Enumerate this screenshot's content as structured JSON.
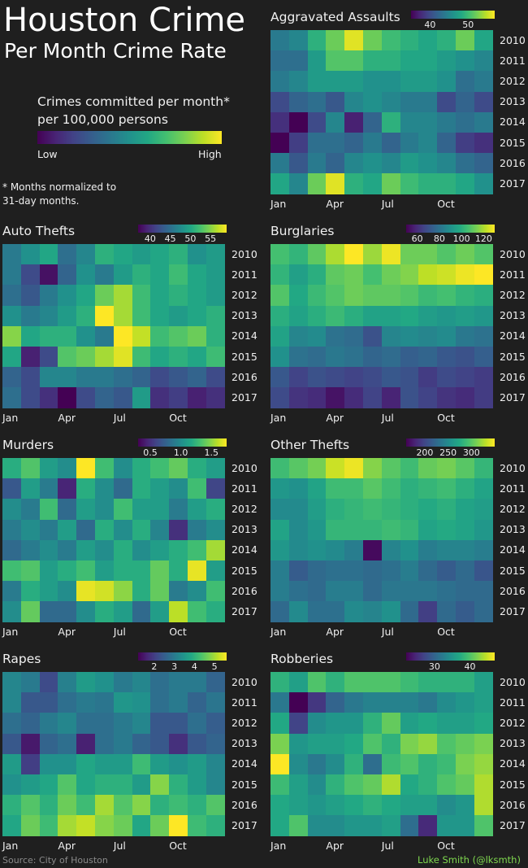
{
  "header": {
    "title": "Houston Crime",
    "subtitle": "Per Month Crime Rate",
    "legend_text": "Crimes committed per month* per 100,000 persons",
    "legend_low": "Low",
    "legend_high": "High",
    "footnote": "* Months normalized to 31-day months."
  },
  "footer": {
    "source": "Source: City of Houston",
    "credit": "Luke Smith (@lksmth)"
  },
  "colorscale": [
    "#440154",
    "#482475",
    "#414487",
    "#355f8d",
    "#2a788e",
    "#21918c",
    "#22a884",
    "#44bf70",
    "#7ad151",
    "#bddf26",
    "#fde725"
  ],
  "chart_data": [
    {
      "type": "heatmap",
      "title": "Aggravated Assaults",
      "xtick_labels": [
        "Jan",
        "Apr",
        "Jul",
        "Oct"
      ],
      "xtick_months": [
        1,
        4,
        7,
        10
      ],
      "y": [
        "2010",
        "2011",
        "2012",
        "2013",
        "2014",
        "2015",
        "2016",
        "2017"
      ],
      "colorbar_ticks": [
        40,
        50
      ],
      "vmin": 35,
      "vmax": 57,
      "values": [
        [
          44,
          45,
          49,
          52,
          56,
          52,
          50,
          49,
          48,
          49,
          52,
          48
        ],
        [
          43,
          43,
          47,
          51,
          51,
          49,
          49,
          48,
          48,
          47,
          46,
          45
        ],
        [
          44,
          45,
          47,
          47,
          47,
          46,
          46,
          47,
          47,
          46,
          43,
          44
        ],
        [
          40,
          42,
          43,
          41,
          45,
          46,
          45,
          44,
          44,
          40,
          42,
          40
        ],
        [
          38,
          35,
          40,
          45,
          37,
          42,
          49,
          45,
          45,
          44,
          43,
          44
        ],
        [
          35,
          39,
          43,
          43,
          42,
          44,
          42,
          44,
          45,
          42,
          39,
          38
        ],
        [
          44,
          41,
          44,
          42,
          45,
          46,
          45,
          47,
          46,
          45,
          43,
          42
        ],
        [
          48,
          45,
          52,
          56,
          49,
          48,
          52,
          50,
          49,
          49,
          48,
          46
        ]
      ]
    },
    {
      "type": "heatmap",
      "title": "Auto Thefts",
      "xtick_labels": [
        "Jan",
        "Apr",
        "Jul",
        "Oct"
      ],
      "xtick_months": [
        1,
        4,
        7,
        10
      ],
      "y": [
        "2010",
        "2011",
        "2012",
        "2013",
        "2014",
        "2015",
        "2016",
        "2017"
      ],
      "colorbar_ticks": [
        40,
        45,
        50,
        55
      ],
      "vmin": 37,
      "vmax": 59,
      "values": [
        [
          46,
          48,
          50,
          45,
          47,
          51,
          50,
          49,
          50,
          51,
          48,
          49
        ],
        [
          46,
          42,
          38,
          44,
          48,
          46,
          49,
          51,
          50,
          52,
          50,
          49
        ],
        [
          45,
          43,
          46,
          48,
          50,
          54,
          56,
          52,
          50,
          51,
          50,
          49
        ],
        [
          48,
          46,
          47,
          49,
          51,
          59,
          56,
          52,
          50,
          49,
          50,
          51
        ],
        [
          55,
          50,
          51,
          51,
          48,
          46,
          59,
          57,
          52,
          53,
          54,
          51
        ],
        [
          50,
          39,
          42,
          53,
          54,
          56,
          58,
          52,
          50,
          51,
          50,
          52
        ],
        [
          44,
          42,
          47,
          47,
          46,
          46,
          45,
          44,
          42,
          43,
          44,
          42
        ],
        [
          45,
          42,
          40,
          37,
          42,
          44,
          43,
          49,
          40,
          41,
          39,
          40
        ]
      ]
    },
    {
      "type": "heatmap",
      "title": "Burglaries",
      "xtick_labels": [
        "Jan",
        "Apr",
        "Jul",
        "Oct"
      ],
      "xtick_months": [
        1,
        4,
        7,
        10
      ],
      "y": [
        "2010",
        "2011",
        "2012",
        "2013",
        "2014",
        "2015",
        "2016",
        "2017"
      ],
      "colorbar_ticks": [
        60,
        80,
        100,
        120
      ],
      "vmin": 50,
      "vmax": 130,
      "values": [
        [
          106,
          102,
          110,
          120,
          130,
          118,
          128,
          112,
          112,
          108,
          112,
          108
        ],
        [
          102,
          95,
          100,
          110,
          112,
          106,
          112,
          115,
          122,
          124,
          128,
          130
        ],
        [
          108,
          98,
          104,
          108,
          112,
          110,
          110,
          108,
          104,
          106,
          102,
          100
        ],
        [
          100,
          96,
          100,
          104,
          100,
          96,
          96,
          98,
          94,
          92,
          94,
          92
        ],
        [
          96,
          86,
          88,
          80,
          78,
          70,
          86,
          88,
          86,
          88,
          82,
          80
        ],
        [
          90,
          80,
          78,
          82,
          80,
          76,
          78,
          74,
          76,
          72,
          70,
          74
        ],
        [
          72,
          66,
          70,
          68,
          66,
          68,
          72,
          70,
          64,
          68,
          66,
          64
        ],
        [
          68,
          62,
          60,
          54,
          60,
          66,
          58,
          70,
          66,
          62,
          60,
          64
        ]
      ]
    },
    {
      "type": "heatmap",
      "title": "Murders",
      "xtick_labels": [
        "Jan",
        "Apr",
        "Jul",
        "Oct"
      ],
      "xtick_months": [
        1,
        4,
        7,
        10
      ],
      "y": [
        "2010",
        "2011",
        "2012",
        "2013",
        "2014",
        "2015",
        "2016",
        "2017"
      ],
      "colorbar_ticks": [
        0.5,
        1.0,
        1.5
      ],
      "vmin": 0.3,
      "vmax": 1.75,
      "values": [
        [
          1.2,
          1.35,
          1.1,
          1.0,
          1.75,
          1.3,
          1.0,
          1.2,
          1.3,
          1.4,
          1.2,
          1.1
        ],
        [
          0.7,
          1.1,
          0.9,
          0.45,
          1.2,
          1.0,
          0.8,
          1.2,
          1.1,
          1.0,
          1.3,
          0.6
        ],
        [
          1.0,
          0.9,
          1.3,
          0.8,
          1.1,
          1.0,
          1.3,
          1.1,
          1.1,
          0.9,
          1.1,
          1.2
        ],
        [
          0.9,
          1.0,
          0.9,
          1.1,
          0.8,
          1.2,
          1.0,
          1.2,
          0.95,
          0.5,
          0.9,
          1.0
        ],
        [
          0.8,
          0.9,
          1.0,
          0.9,
          1.1,
          1.0,
          1.2,
          1.0,
          1.1,
          1.2,
          1.3,
          1.55
        ],
        [
          1.3,
          1.35,
          1.1,
          1.2,
          1.3,
          1.1,
          1.2,
          1.2,
          1.4,
          1.2,
          1.7,
          1.1
        ],
        [
          0.9,
          1.2,
          1.1,
          1.0,
          1.7,
          1.65,
          1.5,
          1.2,
          1.4,
          0.9,
          1.0,
          1.3
        ],
        [
          1.0,
          1.4,
          0.8,
          0.8,
          1.0,
          1.2,
          1.1,
          0.8,
          1.1,
          1.6,
          1.3,
          1.2
        ]
      ]
    },
    {
      "type": "heatmap",
      "title": "Other Thefts",
      "xtick_labels": [
        "Jan",
        "Apr",
        "Jul",
        "Oct"
      ],
      "xtick_months": [
        1,
        4,
        7,
        10
      ],
      "y": [
        "2010",
        "2011",
        "2012",
        "2013",
        "2014",
        "2015",
        "2016",
        "2017"
      ],
      "colorbar_ticks": [
        200,
        250,
        300
      ],
      "vmin": 160,
      "vmax": 350,
      "values": [
        [
          290,
          300,
          310,
          335,
          345,
          315,
          300,
          290,
          305,
          310,
          300,
          285
        ],
        [
          260,
          255,
          270,
          290,
          290,
          300,
          290,
          280,
          285,
          290,
          280,
          270
        ],
        [
          250,
          250,
          265,
          280,
          285,
          290,
          285,
          280,
          275,
          280,
          270,
          265
        ],
        [
          270,
          250,
          260,
          285,
          285,
          285,
          290,
          285,
          270,
          275,
          270,
          260
        ],
        [
          260,
          250,
          255,
          250,
          240,
          165,
          245,
          255,
          240,
          245,
          245,
          240
        ],
        [
          240,
          215,
          225,
          230,
          230,
          225,
          230,
          240,
          225,
          215,
          225,
          210
        ],
        [
          240,
          230,
          225,
          240,
          240,
          225,
          235,
          235,
          235,
          230,
          225,
          225
        ],
        [
          225,
          250,
          230,
          230,
          250,
          245,
          255,
          225,
          195,
          225,
          215,
          225
        ]
      ]
    },
    {
      "type": "heatmap",
      "title": "Rapes",
      "xtick_labels": [
        "Jan",
        "Apr",
        "Jul",
        "Oct"
      ],
      "xtick_months": [
        1,
        4,
        7,
        10
      ],
      "y": [
        "2010",
        "2011",
        "2012",
        "2013",
        "2014",
        "2015",
        "2016",
        "2017"
      ],
      "colorbar_ticks": [
        2,
        3,
        4,
        5
      ],
      "vmin": 1.2,
      "vmax": 5.6,
      "values": [
        [
          3.2,
          3.0,
          2.2,
          3.1,
          3.6,
          3.4,
          3.0,
          3.2,
          2.8,
          3.0,
          3.0,
          2.6
        ],
        [
          3.2,
          2.4,
          2.4,
          2.8,
          3.0,
          2.9,
          3.5,
          3.4,
          2.8,
          3.0,
          2.6,
          2.9
        ],
        [
          2.8,
          2.6,
          3.0,
          3.2,
          2.8,
          2.8,
          3.0,
          3.2,
          2.4,
          2.4,
          2.8,
          2.5
        ],
        [
          2.4,
          1.5,
          2.6,
          2.8,
          1.6,
          2.8,
          3.0,
          2.6,
          2.4,
          1.8,
          2.4,
          2.6
        ],
        [
          3.6,
          2.0,
          3.4,
          3.4,
          3.8,
          3.6,
          3.6,
          4.2,
          3.6,
          3.4,
          3.6,
          3.2
        ],
        [
          3.4,
          3.6,
          3.8,
          4.4,
          3.8,
          4.0,
          4.0,
          3.6,
          4.8,
          4.0,
          3.6,
          3.2
        ],
        [
          4.0,
          4.4,
          4.0,
          4.6,
          4.2,
          5.0,
          4.4,
          4.8,
          4.0,
          4.2,
          4.0,
          4.4
        ],
        [
          3.8,
          4.6,
          4.2,
          5.0,
          5.2,
          4.8,
          4.6,
          3.8,
          4.6,
          5.6,
          4.2,
          4.0
        ]
      ]
    },
    {
      "type": "heatmap",
      "title": "Robberies",
      "xtick_labels": [
        "Jan",
        "Apr",
        "Jul",
        "Oct"
      ],
      "xtick_months": [
        1,
        4,
        7,
        10
      ],
      "y": [
        "2010",
        "2011",
        "2012",
        "2013",
        "2014",
        "2015",
        "2016",
        "2017"
      ],
      "colorbar_ticks": [
        30,
        40
      ],
      "vmin": 22,
      "vmax": 47,
      "values": [
        [
          38,
          36,
          40,
          38,
          40,
          40,
          40,
          39,
          38,
          38,
          38,
          36
        ],
        [
          32,
          22,
          26,
          30,
          32,
          33,
          33,
          33,
          32,
          34,
          35,
          36
        ],
        [
          37,
          27,
          34,
          35,
          35,
          38,
          41,
          36,
          37,
          36,
          36,
          37
        ],
        [
          42,
          35,
          36,
          36,
          37,
          40,
          38,
          42,
          43,
          40,
          41,
          42
        ],
        [
          47,
          34,
          32,
          34,
          38,
          31,
          39,
          40,
          38,
          39,
          42,
          43
        ],
        [
          39,
          36,
          34,
          38,
          40,
          41,
          44,
          37,
          38,
          40,
          41,
          44
        ],
        [
          37,
          36,
          35,
          36,
          37,
          38,
          37,
          36,
          36,
          34,
          35,
          44
        ],
        [
          37,
          40,
          34,
          34,
          35,
          35,
          36,
          31,
          25,
          35,
          35,
          40
        ]
      ]
    }
  ]
}
